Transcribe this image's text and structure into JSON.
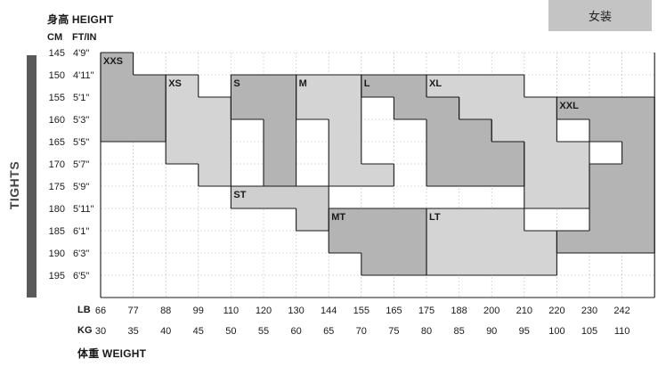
{
  "header": {
    "height_title": "身高 HEIGHT",
    "weight_title": "体重 WEIGHT",
    "gender_badge": "女装",
    "side_label": "TIGHTS",
    "col_cm": "CM",
    "col_ftin": "FT/IN",
    "row_lb": "LB",
    "row_kg": "KG"
  },
  "chart_data": {
    "type": "heatmap",
    "height_cm": [
      145,
      150,
      155,
      160,
      165,
      170,
      175,
      180,
      185,
      190,
      195
    ],
    "height_ftin": [
      "4'9\"",
      "4'11\"",
      "5'1\"",
      "5'3\"",
      "5'5\"",
      "5'7\"",
      "5'9\"",
      "5'11\"",
      "6'1\"",
      "6'3\"",
      "6'5\""
    ],
    "weight_lb": [
      "66",
      "77",
      "88",
      "99",
      "110",
      "120",
      "130",
      "144",
      "155",
      "165",
      "175",
      "188",
      "200",
      "210",
      "220",
      "230",
      "242"
    ],
    "weight_kg": [
      "30",
      "35",
      "40",
      "45",
      "50",
      "55",
      "60",
      "65",
      "70",
      "75",
      "80",
      "85",
      "90",
      "95",
      "100",
      "105",
      "110"
    ],
    "sizes": [
      {
        "name": "XXS",
        "shade": "#b4b4b4",
        "label_at": [
          30,
          145
        ],
        "cells": [
          [
            30,
            145
          ],
          [
            30,
            150
          ],
          [
            35,
            150
          ],
          [
            30,
            155
          ],
          [
            35,
            155
          ],
          [
            30,
            160
          ],
          [
            35,
            160
          ]
        ]
      },
      {
        "name": "XS",
        "shade": "#d4d4d4",
        "label_at": [
          40,
          150
        ],
        "cells": [
          [
            40,
            150
          ],
          [
            40,
            155
          ],
          [
            45,
            155
          ],
          [
            40,
            160
          ],
          [
            45,
            160
          ],
          [
            40,
            165
          ],
          [
            45,
            165
          ],
          [
            45,
            170
          ]
        ]
      },
      {
        "name": "S",
        "shade": "#b4b4b4",
        "label_at": [
          50,
          150
        ],
        "cells": [
          [
            50,
            150
          ],
          [
            55,
            150
          ],
          [
            50,
            155
          ],
          [
            55,
            155
          ],
          [
            55,
            160
          ],
          [
            55,
            165
          ],
          [
            55,
            170
          ]
        ]
      },
      {
        "name": "M",
        "shade": "#d4d4d4",
        "label_at": [
          60,
          150
        ],
        "cells": [
          [
            60,
            150
          ],
          [
            65,
            150
          ],
          [
            60,
            155
          ],
          [
            65,
            155
          ],
          [
            65,
            160
          ],
          [
            65,
            165
          ],
          [
            65,
            170
          ],
          [
            70,
            170
          ]
        ]
      },
      {
        "name": "L",
        "shade": "#b4b4b4",
        "label_at": [
          70,
          150
        ],
        "cells": [
          [
            70,
            150
          ],
          [
            75,
            150
          ],
          [
            75,
            155
          ],
          [
            80,
            155
          ],
          [
            80,
            160
          ],
          [
            85,
            160
          ],
          [
            80,
            165
          ],
          [
            85,
            165
          ],
          [
            90,
            165
          ],
          [
            80,
            170
          ],
          [
            85,
            170
          ],
          [
            90,
            170
          ]
        ]
      },
      {
        "name": "XL",
        "shade": "#d4d4d4",
        "label_at": [
          80,
          150
        ],
        "cells": [
          [
            80,
            150
          ],
          [
            85,
            150
          ],
          [
            90,
            150
          ],
          [
            85,
            155
          ],
          [
            90,
            155
          ],
          [
            95,
            155
          ],
          [
            90,
            160
          ],
          [
            95,
            160
          ],
          [
            95,
            165
          ],
          [
            100,
            165
          ],
          [
            95,
            170
          ],
          [
            100,
            170
          ],
          [
            95,
            175
          ],
          [
            100,
            175
          ]
        ]
      },
      {
        "name": "XXL",
        "shade": "#b4b4b4",
        "label_at": [
          100,
          155
        ],
        "cells": [
          [
            100,
            155
          ],
          [
            105,
            155
          ],
          [
            110,
            155
          ],
          [
            105,
            160
          ],
          [
            110,
            160
          ],
          [
            110,
            165
          ],
          [
            105,
            170
          ],
          [
            110,
            170
          ],
          [
            105,
            175
          ],
          [
            110,
            175
          ],
          [
            105,
            180
          ],
          [
            110,
            180
          ],
          [
            100,
            185
          ],
          [
            105,
            185
          ],
          [
            110,
            185
          ]
        ]
      },
      {
        "name": "ST",
        "shade": "#cfcfcf",
        "label_at": [
          50,
          175
        ],
        "cells": [
          [
            50,
            175
          ],
          [
            55,
            175
          ],
          [
            60,
            175
          ],
          [
            60,
            180
          ]
        ]
      },
      {
        "name": "MT",
        "shade": "#b4b4b4",
        "label_at": [
          65,
          180
        ],
        "cells": [
          [
            65,
            180
          ],
          [
            70,
            180
          ],
          [
            75,
            180
          ],
          [
            65,
            185
          ],
          [
            70,
            185
          ],
          [
            75,
            185
          ],
          [
            70,
            190
          ],
          [
            75,
            190
          ]
        ]
      },
      {
        "name": "LT",
        "shade": "#d4d4d4",
        "label_at": [
          80,
          180
        ],
        "cells": [
          [
            80,
            180
          ],
          [
            85,
            180
          ],
          [
            90,
            180
          ],
          [
            80,
            185
          ],
          [
            85,
            185
          ],
          [
            90,
            185
          ],
          [
            95,
            185
          ],
          [
            80,
            190
          ],
          [
            85,
            190
          ],
          [
            90,
            190
          ],
          [
            95,
            190
          ]
        ]
      }
    ]
  }
}
